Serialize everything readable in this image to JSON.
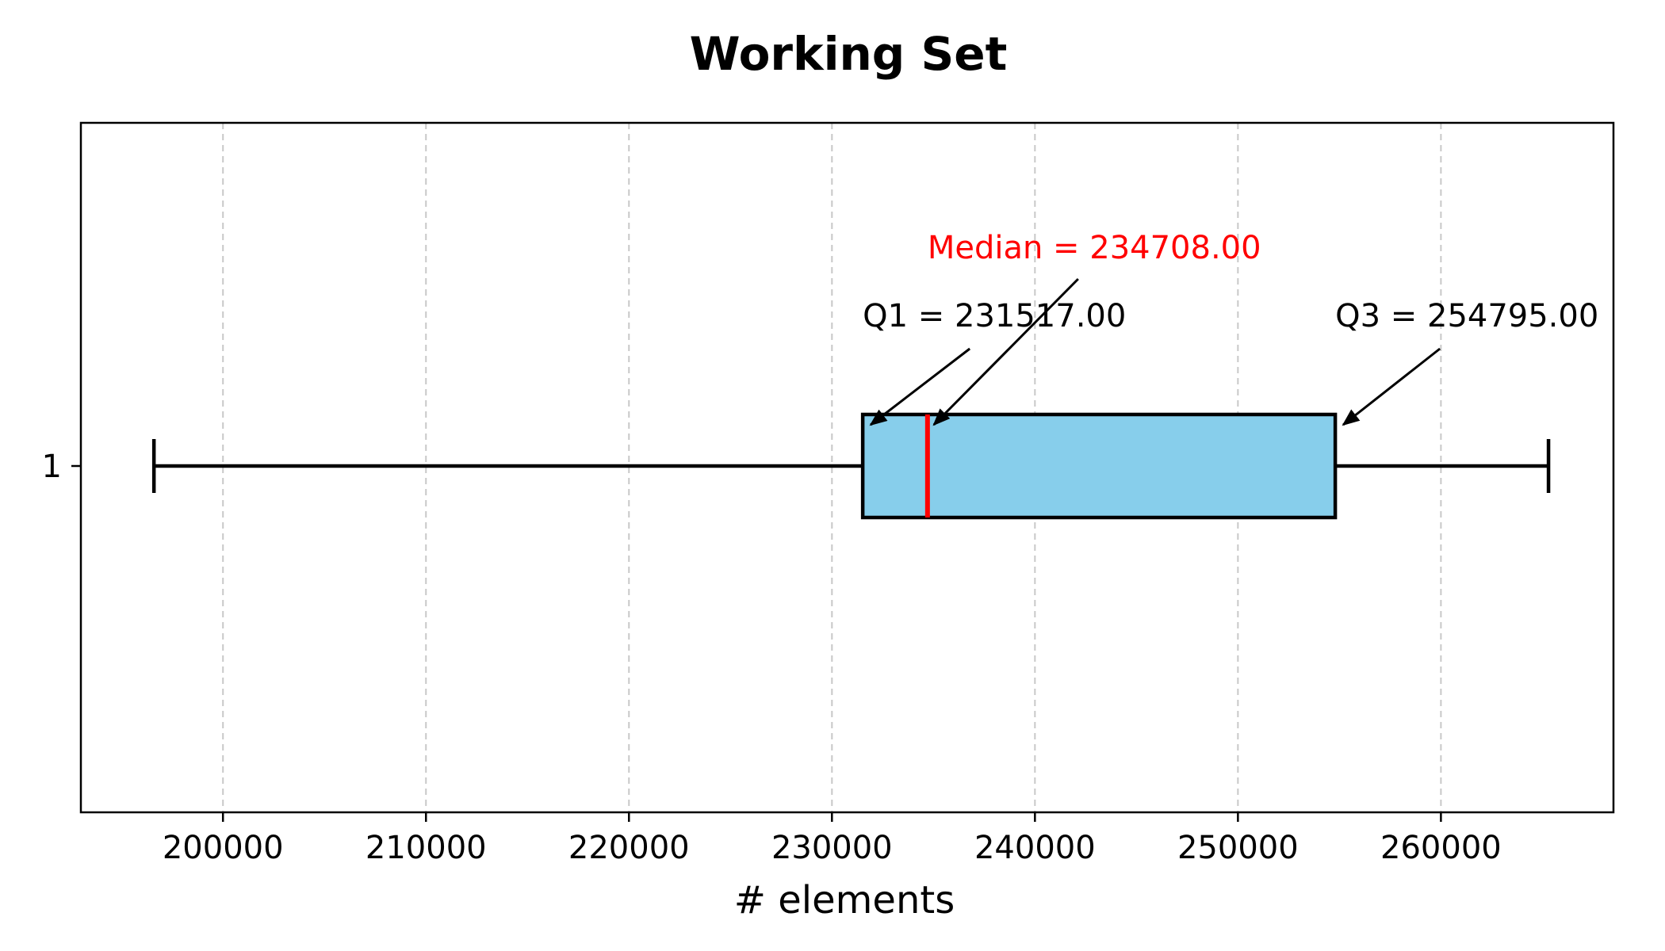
{
  "chart_data": {
    "type": "box",
    "title": "Working Set",
    "xlabel": "# elements",
    "ylabel": "",
    "orientation": "horizontal",
    "xlim": [
      193000,
      268500
    ],
    "x_ticks": [
      200000,
      210000,
      220000,
      230000,
      240000,
      250000,
      260000
    ],
    "x_tick_labels": [
      "200000",
      "210000",
      "220000",
      "230000",
      "240000",
      "250000",
      "260000"
    ],
    "y_tick_labels": [
      "1"
    ],
    "grid": "x-dashed",
    "box": {
      "whisker_low": 196600,
      "q1": 231517.0,
      "median": 234708.0,
      "q3": 254795.0,
      "whisker_high": 265300
    },
    "annotations": {
      "q1": "Q1 = 231517.00",
      "median": "Median = 234708.00",
      "q3": "Q3 = 254795.00"
    },
    "colors": {
      "box_fill": "#87CEEB",
      "median_line": "#FF0000",
      "median_text": "#FF0000",
      "grid": "#c8c8c8",
      "outline": "#000000"
    }
  }
}
